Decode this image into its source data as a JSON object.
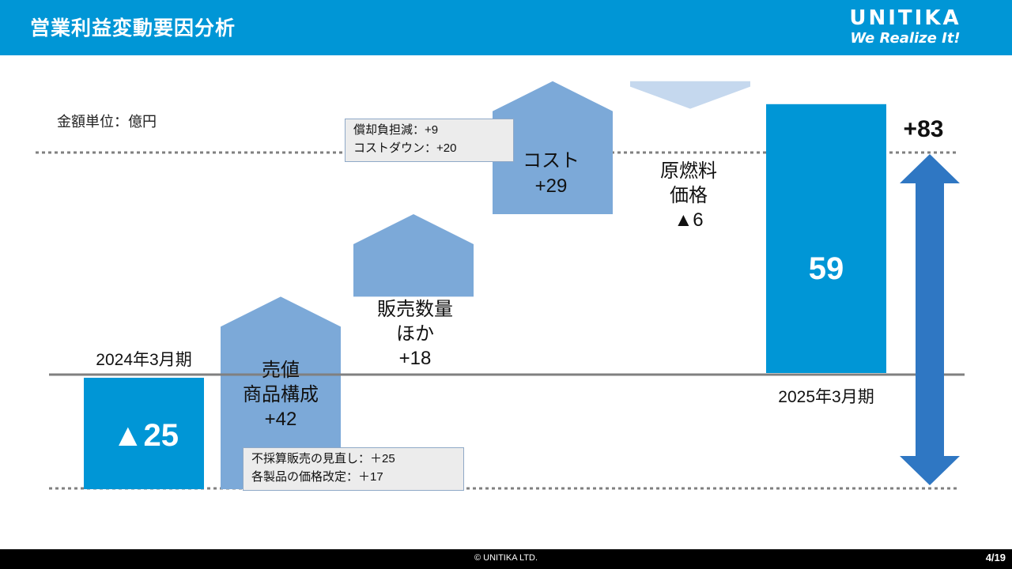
{
  "header": {
    "title": "営業利益変動要因分析",
    "logo_name": "UNITIKA",
    "logo_tagline": "We Realize It!"
  },
  "unit_label": "金額単位：億円",
  "chart_data": {
    "type": "bar",
    "subtype": "waterfall",
    "categories": [
      "2024年3月期",
      "売値 商品構成",
      "販売数量ほか",
      "コスト",
      "原燃料価格",
      "2025年3月期"
    ],
    "values": [
      -25,
      42,
      18,
      29,
      -6,
      59
    ],
    "ylim": [
      -25,
      59
    ],
    "grid": false,
    "start_value_label": "▲25",
    "end_value_label": "59",
    "total_change_label": "+83",
    "start_label": "2024年3月期",
    "end_label": "2025年3月期",
    "steps": [
      {
        "label_lines": [
          "売値",
          "商品構成",
          "+42"
        ],
        "value": 42
      },
      {
        "label_lines": [
          "販売数量",
          "ほか",
          "+18"
        ],
        "value": 18
      },
      {
        "label_lines": [
          "コスト",
          "+29"
        ],
        "value": 29
      },
      {
        "label_lines": [
          "原燃料",
          "価格",
          "▲6"
        ],
        "value": -6
      }
    ],
    "colors": {
      "total_bar": "#0096d6",
      "increase_arrow": "#7ca9d8",
      "decrease_arrow": "#c5d8ee",
      "span_arrow": "#2f77c3",
      "baseline": "#808080",
      "dotted_line": "#808080"
    }
  },
  "notes": {
    "cost": [
      "償却負担減：+9",
      "コストダウン：+20"
    ],
    "price": [
      "不採算販売の見直し：＋25",
      "各製品の価格改定：＋17"
    ]
  },
  "footer": {
    "copyright": "© UNITIKA LTD.",
    "page": "4/19"
  }
}
